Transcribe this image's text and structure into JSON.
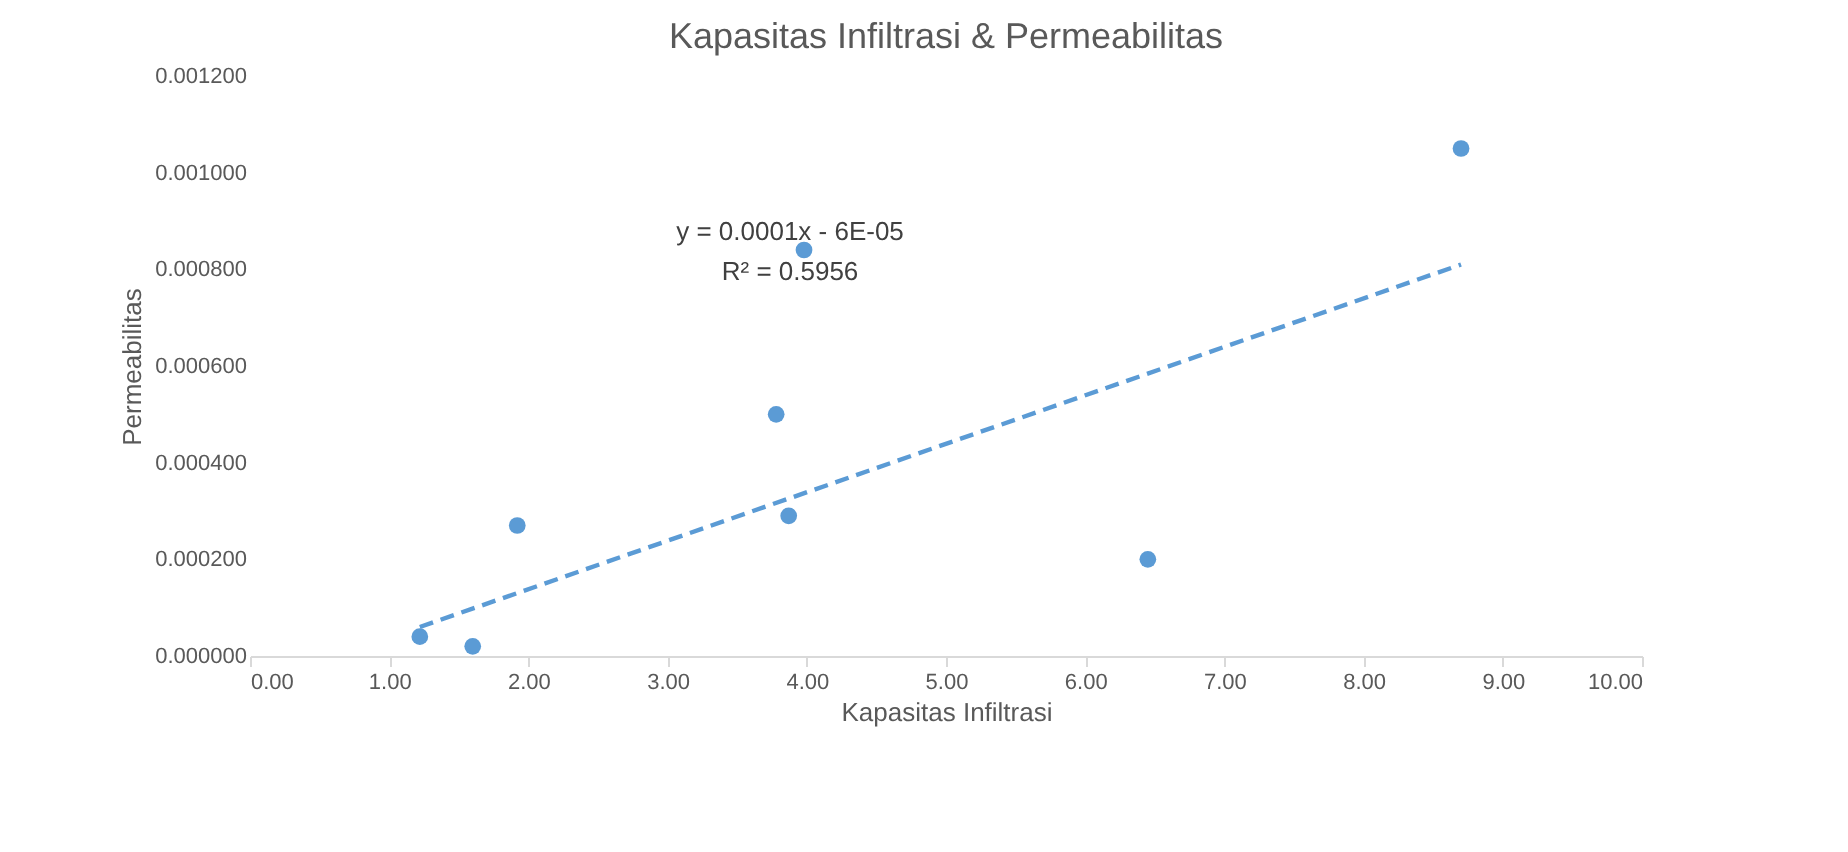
{
  "chart_data": {
    "type": "scatter",
    "title": "Kapasitas Infiltrasi & Permeabilitas",
    "xlabel": "Kapasitas Infiltrasi",
    "ylabel": "Permeabilitas",
    "series": [
      {
        "color": "#5b9bd5",
        "x": [
          1.22,
          1.6,
          1.92,
          3.78,
          3.87,
          3.98,
          6.45,
          8.7
        ],
        "values": [
          4e-05,
          2e-05,
          0.00027,
          0.0005,
          0.00029,
          0.00084,
          0.0002,
          0.00105
        ],
        "marker": "circle"
      },
      {
        "type": "line",
        "color": "#5b9bd5",
        "x": [
          1.22,
          8.7
        ],
        "values": [
          6e-05,
          0.00081
        ],
        "line_style": "dashed"
      }
    ],
    "xlim": [
      0,
      10
    ],
    "xticks": [
      {
        "value": 0,
        "label": "0.00"
      },
      {
        "value": 1,
        "label": "1.00"
      },
      {
        "value": 2,
        "label": "2.00"
      },
      {
        "value": 3,
        "label": "3.00"
      },
      {
        "value": 4,
        "label": "4.00"
      },
      {
        "value": 5,
        "label": "5.00"
      },
      {
        "value": 6,
        "label": "6.00"
      },
      {
        "value": 7,
        "label": "7.00"
      },
      {
        "value": 8,
        "label": "8.00"
      },
      {
        "value": 9,
        "label": "9.00"
      },
      {
        "value": 10,
        "label": "10.00"
      }
    ],
    "ylim": [
      0,
      0.0012
    ],
    "yticks": [
      {
        "value": 0,
        "label": "0.000000"
      },
      {
        "value": 0.0002,
        "label": "0.000200"
      },
      {
        "value": 0.0004,
        "label": "0.000400"
      },
      {
        "value": 0.0006,
        "label": "0.000600"
      },
      {
        "value": 0.0008,
        "label": "0.000800"
      },
      {
        "value": 0.001,
        "label": "0.001000"
      },
      {
        "value": 0.0012,
        "label": "0.001200"
      }
    ],
    "annotations": [
      "y = 0.0001x - 6E-05",
      "R² = 0.5956"
    ],
    "grid": false
  }
}
